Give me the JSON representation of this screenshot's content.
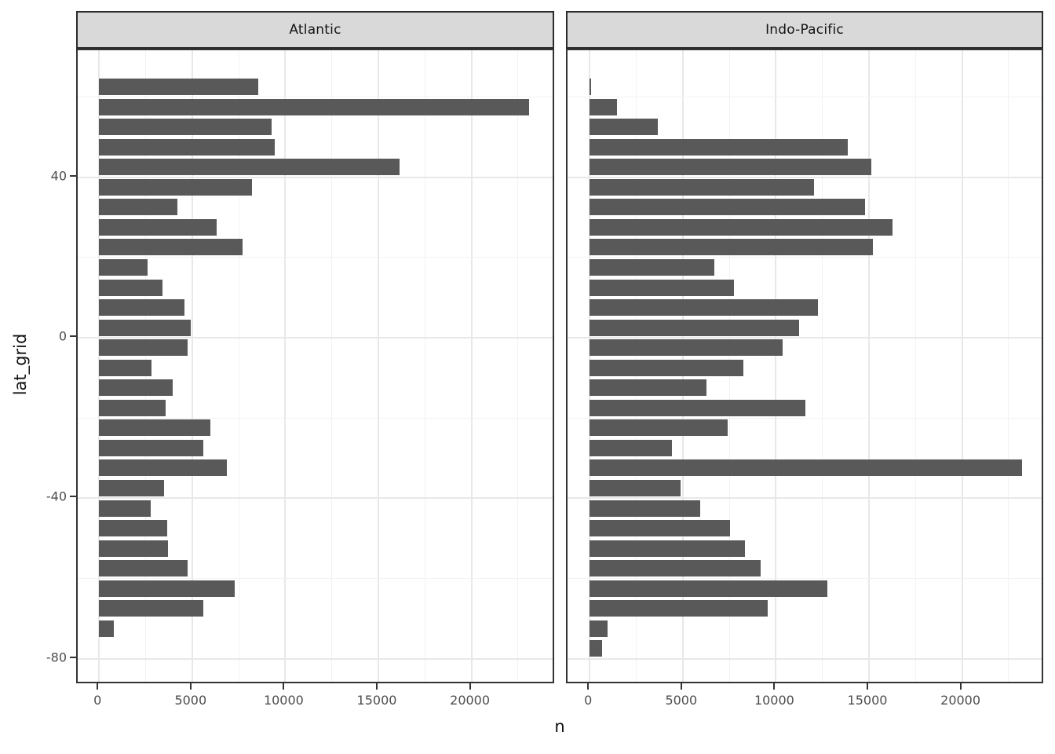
{
  "chart_data": {
    "type": "bar",
    "orientation": "horizontal",
    "title": "",
    "xlabel": "n",
    "ylabel": "lat_grid",
    "x_ticks": [
      0,
      5000,
      10000,
      15000,
      20000
    ],
    "x_minor_ticks": [
      2500,
      7500,
      12500,
      17500,
      22500
    ],
    "y_ticks": [
      40,
      0,
      -40,
      -80
    ],
    "y_minor_ticks": [
      60,
      20,
      -20,
      -60
    ],
    "xlim": [
      -1150,
      24450
    ],
    "ylim": [
      -87.3,
      72.3
    ],
    "grid": "on",
    "bar_color": "#595959",
    "strip_bg_color": "#d9d9d9",
    "panel_bg_color": "#ffffff",
    "facets": [
      {
        "label": "Atlantic",
        "lat_grid": [
          62.5,
          57.5,
          52.5,
          47.5,
          42.5,
          37.5,
          32.5,
          27.5,
          22.5,
          17.5,
          12.5,
          7.5,
          2.5,
          -2.5,
          -7.5,
          -12.5,
          -17.5,
          -22.5,
          -27.5,
          -32.5,
          -37.5,
          -42.5,
          -47.5,
          -52.5,
          -57.5,
          -62.5,
          -67.5,
          -72.5
        ],
        "n": [
          8550,
          23100,
          9250,
          9450,
          16150,
          8200,
          4220,
          6300,
          7700,
          2600,
          3400,
          4600,
          4920,
          4740,
          2810,
          3970,
          3590,
          5990,
          5620,
          6880,
          3480,
          2760,
          3670,
          3720,
          4770,
          7300,
          5600,
          800
        ]
      },
      {
        "label": "Indo-Pacific",
        "lat_grid": [
          62.5,
          57.5,
          52.5,
          47.5,
          42.5,
          37.5,
          32.5,
          27.5,
          22.5,
          17.5,
          12.5,
          7.5,
          2.5,
          -2.5,
          -7.5,
          -12.5,
          -17.5,
          -22.5,
          -27.5,
          -32.5,
          -37.5,
          -42.5,
          -47.5,
          -52.5,
          -57.5,
          -62.5,
          -67.5,
          -72.5,
          -77.5
        ],
        "n": [
          60,
          1480,
          3640,
          13870,
          15120,
          12040,
          14780,
          16250,
          15200,
          6710,
          7760,
          12250,
          11260,
          10370,
          8260,
          6270,
          11590,
          7430,
          4400,
          23240,
          4900,
          5950,
          7550,
          8350,
          9200,
          12770,
          9550,
          975,
          680
        ]
      }
    ]
  }
}
